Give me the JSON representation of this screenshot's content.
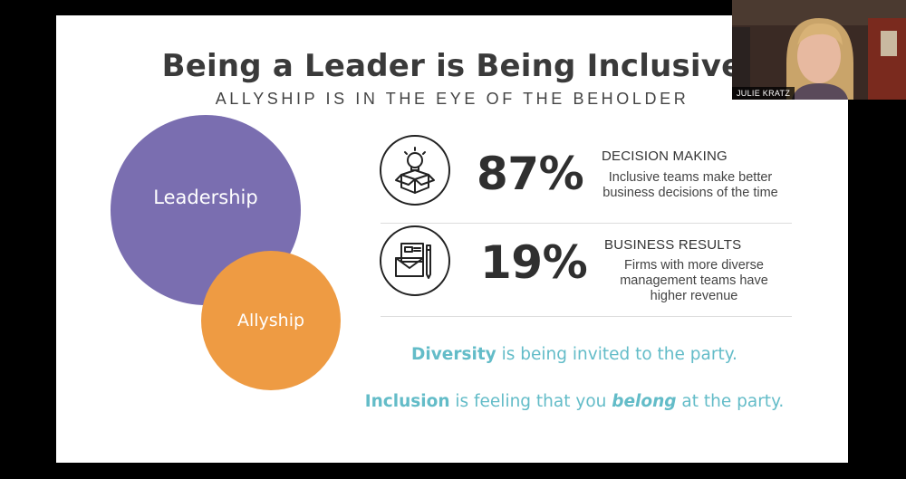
{
  "slide": {
    "title": "Being a Leader is Being Inclusive",
    "subtitle": "ALLYSHIP IS IN THE EYE OF THE BEHOLDER",
    "circles": {
      "leadership": "Leadership",
      "allyship": "Allyship"
    },
    "stats": [
      {
        "icon": "lightbulb-box-icon",
        "value": "87%",
        "heading": "DECISION MAKING",
        "desc_line1": "Inclusive teams make better",
        "desc_line2": "business decisions of the time",
        "desc_line3": ""
      },
      {
        "icon": "envelope-pencil-icon",
        "value": "19%",
        "heading": "BUSINESS RESULTS",
        "desc_line1": "Firms with more diverse",
        "desc_line2": "management teams have",
        "desc_line3": "higher revenue"
      }
    ],
    "quotes": {
      "diversity_word": "Diversity",
      "diversity_rest": " is being invited to the party.",
      "inclusion_word": "Inclusion",
      "inclusion_mid": " is feeling that you ",
      "inclusion_em": "belong",
      "inclusion_end": " at the party."
    },
    "colors": {
      "leadership": "#7a6eb0",
      "allyship": "#ee9b43",
      "quote_accent": "#63bcc8"
    }
  },
  "video_tile": {
    "participant_name": "JULIE KRATZ"
  }
}
